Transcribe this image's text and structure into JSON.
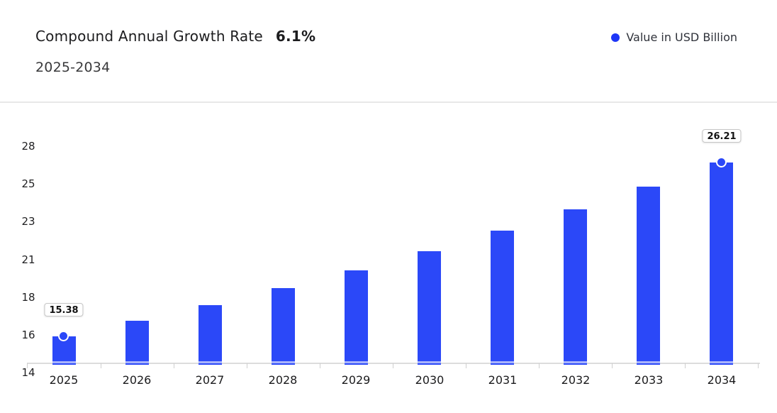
{
  "header": {
    "title": "Compound Annual Growth Rate",
    "cagr_value": "6.1%",
    "subtitle": "2025-2034"
  },
  "legend": {
    "label": "Value in USD Billion",
    "dot_icon": "circle"
  },
  "colors": {
    "bar_blue": "#2b48f8",
    "legend_dot_blue": "#1e36f7",
    "bar_stripe": "#a9b4fb",
    "axis_line": "#dcdcdc",
    "tick": "#cfcfcf",
    "divider": "#e8e8e8",
    "label_box_border": "#c6c6c6"
  },
  "chart_data": {
    "type": "bar",
    "title": "Compound Annual Growth Rate 6.1%",
    "subtitle": "2025-2034",
    "series_name": "Value in USD Billion",
    "categories": [
      "2025",
      "2026",
      "2027",
      "2028",
      "2029",
      "2030",
      "2031",
      "2032",
      "2033",
      "2034"
    ],
    "values": [
      15.38,
      16.32,
      17.31,
      18.37,
      19.49,
      20.68,
      21.94,
      23.28,
      24.7,
      26.21
    ],
    "point_labels": [
      {
        "index": 0,
        "text": "15.38"
      },
      {
        "index": 9,
        "text": "26.21"
      }
    ],
    "y_tick_labels": [
      "28",
      "25",
      "23",
      "21",
      "18",
      "16",
      "14"
    ],
    "ylim": [
      13.6,
      28.4
    ],
    "grid": false,
    "legend_position": "top-right",
    "xlabel": "",
    "ylabel": "Value in USD Billion"
  }
}
